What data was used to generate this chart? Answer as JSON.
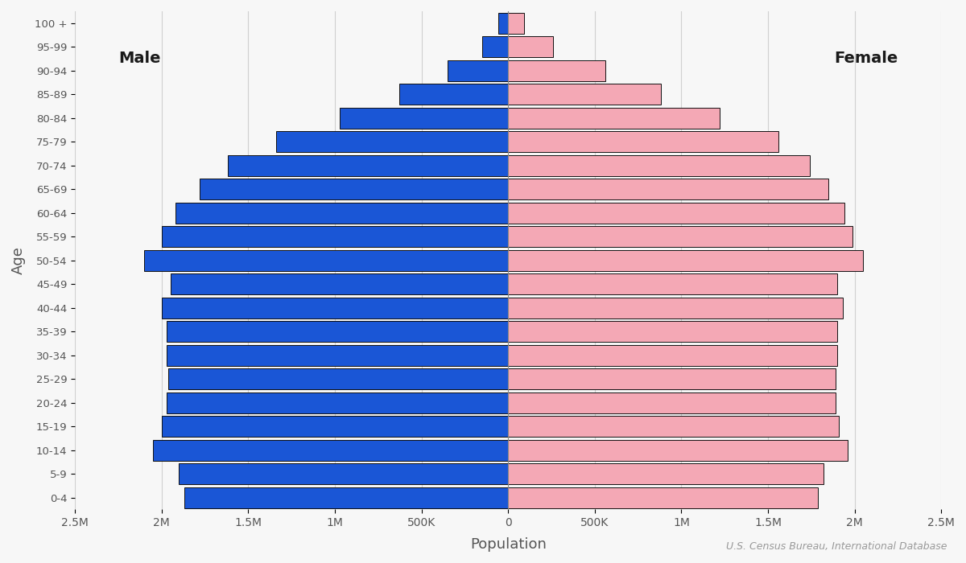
{
  "age_groups": [
    "0-4",
    "5-9",
    "10-14",
    "15-19",
    "20-24",
    "25-29",
    "30-34",
    "35-39",
    "40-44",
    "45-49",
    "50-54",
    "55-59",
    "60-64",
    "65-69",
    "70-74",
    "75-79",
    "80-84",
    "85-89",
    "90-94",
    "95-99",
    "100 +"
  ],
  "male": [
    1870000,
    1900000,
    2050000,
    2000000,
    1970000,
    1960000,
    1970000,
    1970000,
    2000000,
    1950000,
    2100000,
    2000000,
    1920000,
    1780000,
    1620000,
    1340000,
    970000,
    630000,
    350000,
    150000,
    55000
  ],
  "female": [
    1790000,
    1820000,
    1960000,
    1910000,
    1890000,
    1890000,
    1900000,
    1900000,
    1930000,
    1900000,
    2050000,
    1990000,
    1940000,
    1850000,
    1740000,
    1560000,
    1220000,
    880000,
    560000,
    260000,
    90000
  ],
  "male_color": "#1a56d6",
  "female_color": "#f4a8b5",
  "male_label": "Male",
  "female_label": "Female",
  "xlabel": "Population",
  "ylabel": "Age",
  "source_text": "U.S. Census Bureau, International Database",
  "xlim": 2500000,
  "background_color": "#f7f7f7",
  "bar_edge_color": "#111111",
  "bar_linewidth": 0.7,
  "tick_color": "#555555",
  "grid_color": "#d0d0d0",
  "tick_positions": [
    -2500000,
    -2000000,
    -1500000,
    -1000000,
    -500000,
    0,
    500000,
    1000000,
    1500000,
    2000000,
    2500000
  ],
  "tick_labels": [
    "2.5M",
    "2M",
    "1.5M",
    "1M",
    "500K",
    "0",
    "500K",
    "1M",
    "1.5M",
    "2M",
    "2.5M"
  ]
}
